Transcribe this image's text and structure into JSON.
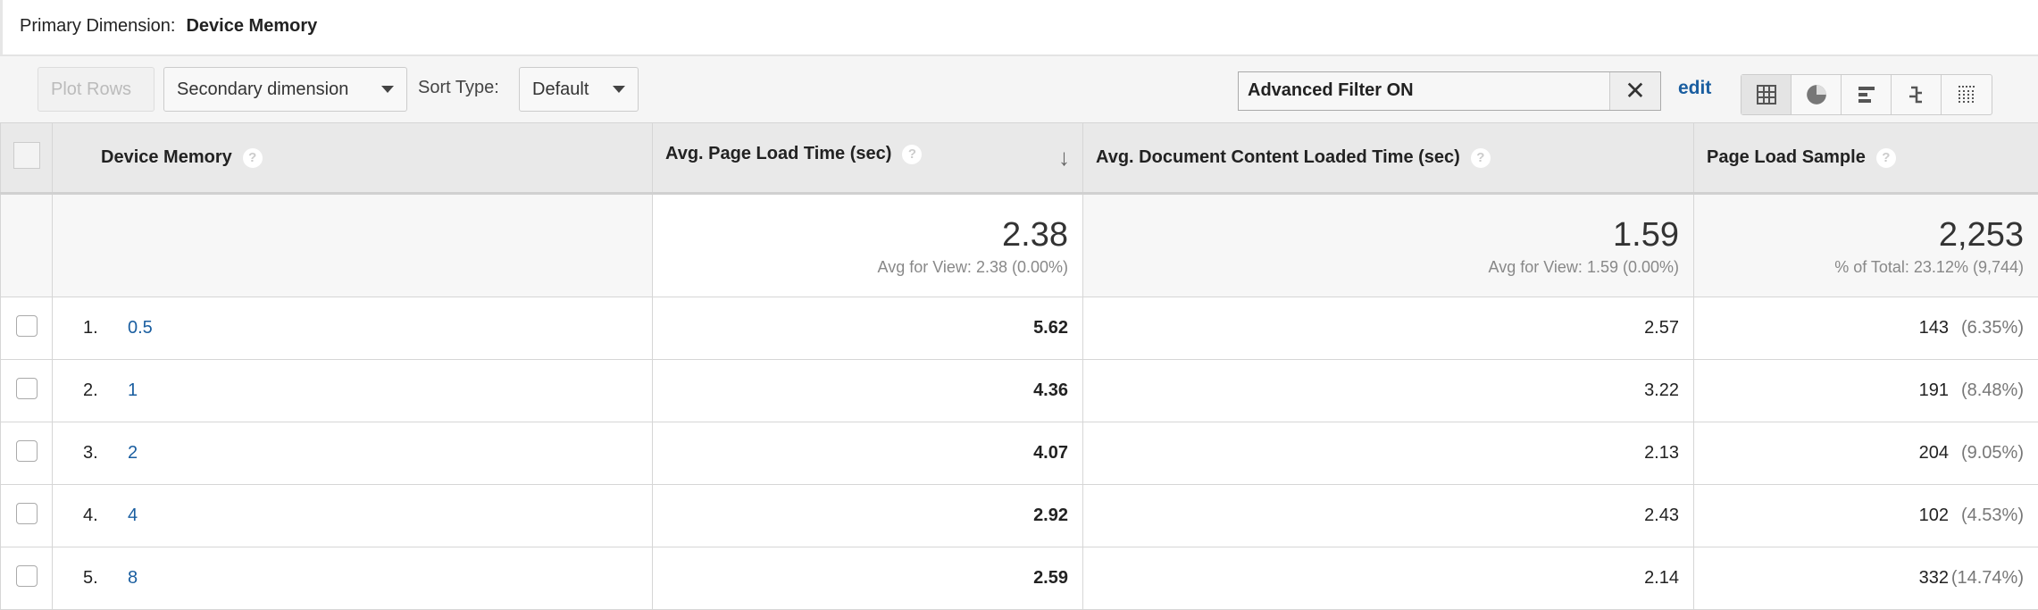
{
  "primary_dimension": {
    "label": "Primary Dimension:",
    "value": "Device Memory"
  },
  "toolbar": {
    "plot_rows": "Plot Rows",
    "secondary_dimension": "Secondary dimension",
    "sort_type_label": "Sort Type:",
    "sort_type_value": "Default",
    "filter_value": "Advanced Filter ON",
    "filter_clear": "✕",
    "edit": "edit",
    "views": [
      "table-icon",
      "pie-icon",
      "bar-icon",
      "comparison-icon",
      "pivot-icon"
    ],
    "active_view": "table-icon"
  },
  "columns": [
    "Device Memory",
    "Avg. Page Load Time (sec)",
    "Avg. Document Content Loaded Time (sec)",
    "Page Load Sample"
  ],
  "sorted_column": "Avg. Page Load Time (sec)",
  "help_glyph": "?",
  "sort_arrow": "↓",
  "totals": {
    "c1": "2.38",
    "c1_sub": "Avg for View: 2.38 (0.00%)",
    "c2": "1.59",
    "c2_sub": "Avg for View: 1.59 (0.00%)",
    "c3": "2,253",
    "c3_sub": "% of Total: 23.12% (9,744)"
  },
  "rows": [
    {
      "index": "1.",
      "dim": "0.5",
      "c1": "5.62",
      "c2": "2.57",
      "c3": "143",
      "c3_pct": "(6.35%)"
    },
    {
      "index": "2.",
      "dim": "1",
      "c1": "4.36",
      "c2": "3.22",
      "c3": "191",
      "c3_pct": "(8.48%)"
    },
    {
      "index": "3.",
      "dim": "2",
      "c1": "4.07",
      "c2": "2.13",
      "c3": "204",
      "c3_pct": "(9.05%)"
    },
    {
      "index": "4.",
      "dim": "4",
      "c1": "2.92",
      "c2": "2.43",
      "c3": "102",
      "c3_pct": "(4.53%)"
    },
    {
      "index": "5.",
      "dim": "8",
      "c1": "2.59",
      "c2": "2.14",
      "c3": "332",
      "c3_pct": "(14.74%)"
    }
  ]
}
